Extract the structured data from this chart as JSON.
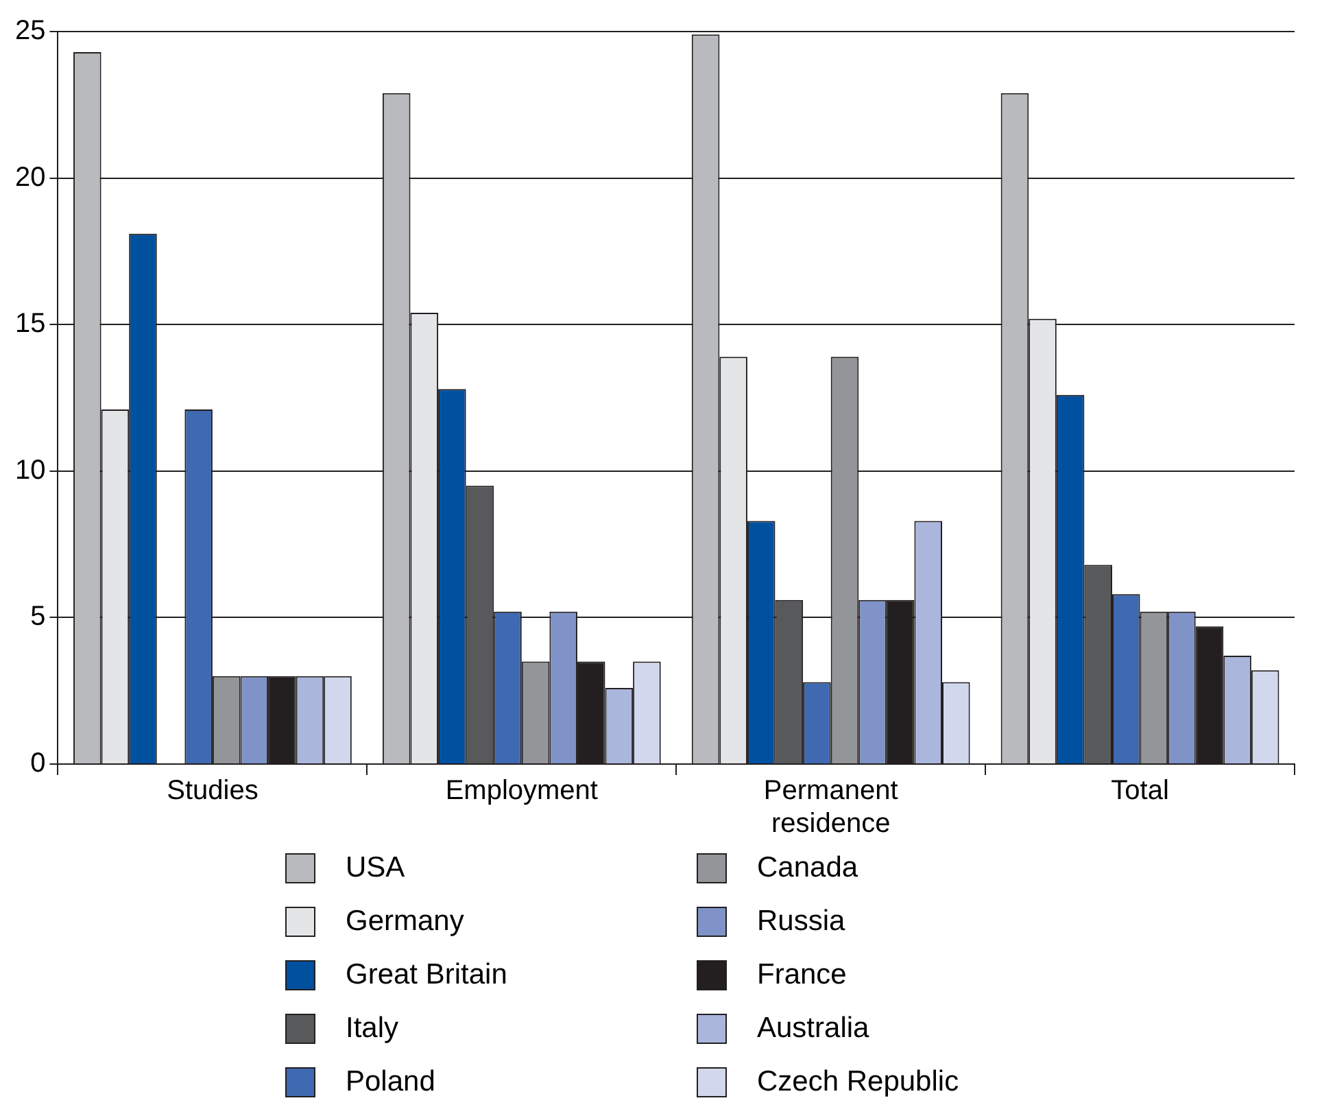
{
  "chart_data": {
    "type": "bar",
    "categories": [
      "Studies",
      "Employment",
      "Permanent residence",
      "Total"
    ],
    "series": [
      {
        "name": "USA",
        "color": "#b9babe",
        "values": [
          24.3,
          22.9,
          24.9,
          22.9
        ]
      },
      {
        "name": "Germany",
        "color": "#e4e5e7",
        "values": [
          12.1,
          15.4,
          13.9,
          15.2
        ]
      },
      {
        "name": "Great Britain",
        "color": "#0050a0",
        "values": [
          18.1,
          12.8,
          8.3,
          12.6
        ]
      },
      {
        "name": "Italy",
        "color": "#58595b",
        "values": [
          0,
          9.5,
          5.6,
          6.8
        ]
      },
      {
        "name": "Poland",
        "color": "#3f69b0",
        "values": [
          12.1,
          5.2,
          2.8,
          5.8
        ]
      },
      {
        "name": "Canada",
        "color": "#939598",
        "values": [
          3.0,
          3.5,
          13.9,
          5.2
        ]
      },
      {
        "name": "Russia",
        "color": "#7f93c8",
        "values": [
          3.0,
          5.2,
          5.6,
          5.2
        ]
      },
      {
        "name": "France",
        "color": "#231f20",
        "values": [
          3.0,
          3.5,
          5.6,
          4.7
        ]
      },
      {
        "name": "Australia",
        "color": "#abb6dd",
        "values": [
          3.0,
          2.6,
          8.3,
          3.7
        ]
      },
      {
        "name": "Czech Republic",
        "color": "#d1d7ec",
        "values": [
          3.0,
          3.5,
          2.8,
          3.2
        ]
      }
    ],
    "ylim": [
      0,
      25
    ],
    "yticks": [
      0,
      5,
      10,
      15,
      20,
      25
    ],
    "grid": "y",
    "legend": "bottom"
  }
}
